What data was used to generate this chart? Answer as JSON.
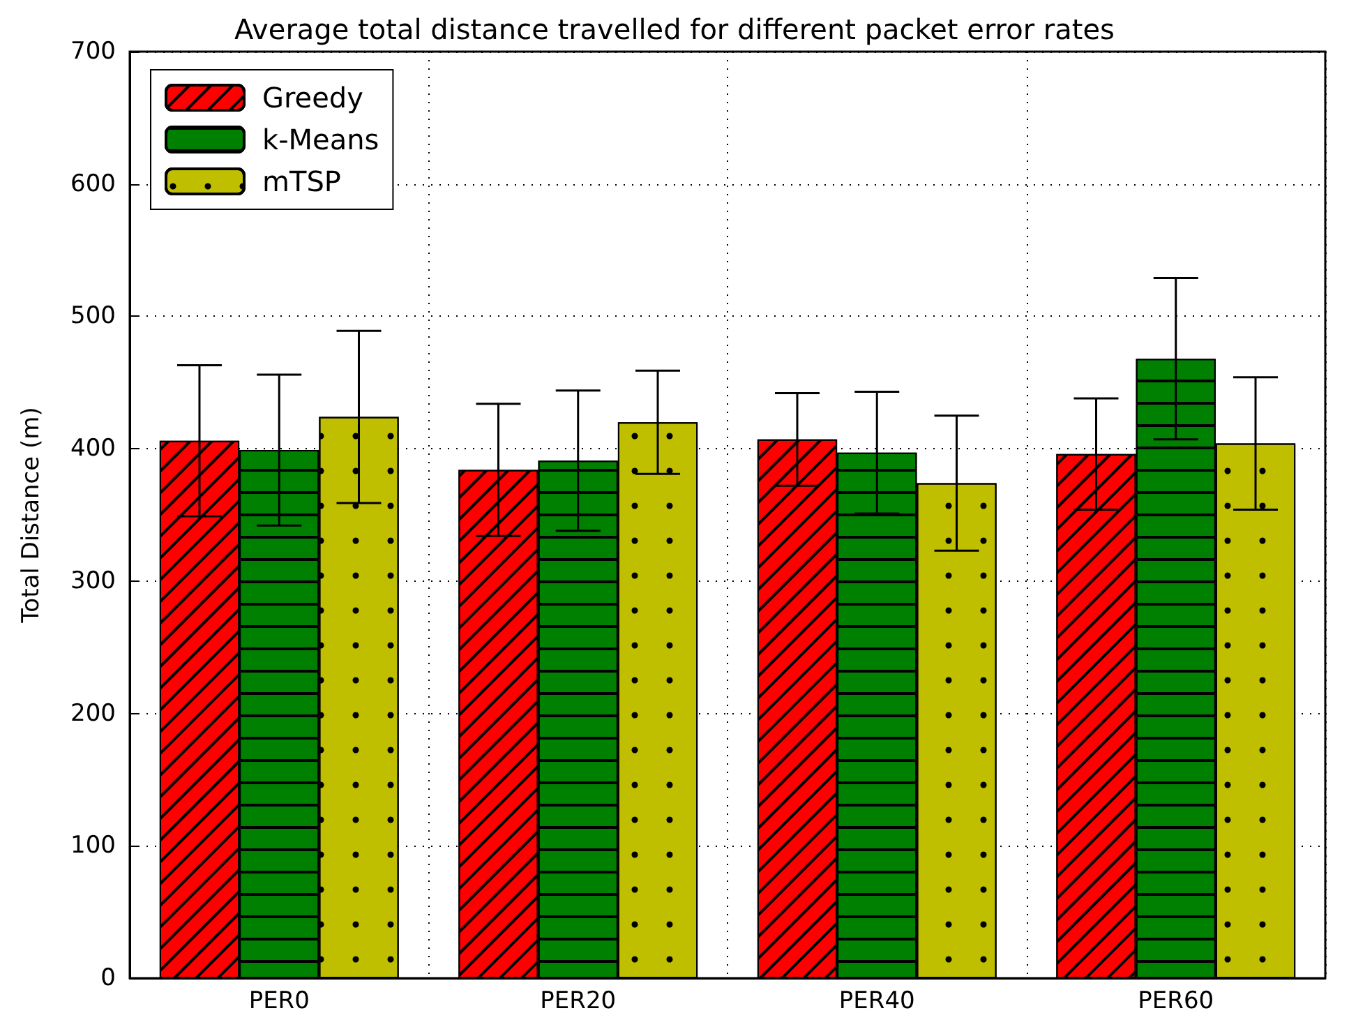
{
  "chart_data": {
    "type": "bar",
    "title": "Average total distance travelled for different packet error rates",
    "ylabel": "Total Distance (m)",
    "categories": [
      "PER0",
      "PER20",
      "PER40",
      "PER60"
    ],
    "series": [
      {
        "name": "Greedy",
        "color": "#ff0000",
        "values": [
          406,
          384,
          407,
          396
        ],
        "errors": [
          57,
          50,
          35,
          42
        ]
      },
      {
        "name": "k-Means",
        "color": "#008000",
        "values": [
          399,
          391,
          397,
          468
        ],
        "errors": [
          57,
          53,
          46,
          61
        ]
      },
      {
        "name": "mTSP",
        "color": "#bfbf00",
        "values": [
          424,
          420,
          374,
          404
        ],
        "errors": [
          65,
          39,
          51,
          50
        ]
      }
    ],
    "ylim": [
      0,
      700
    ],
    "yticks": [
      0,
      100,
      200,
      300,
      400,
      500,
      600,
      700
    ],
    "grid": true,
    "legend": "top left"
  }
}
